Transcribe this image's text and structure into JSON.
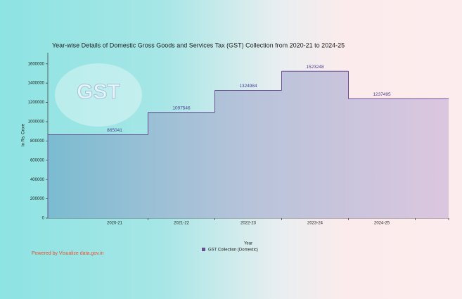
{
  "chart_data": {
    "type": "step-area",
    "title": "Year-wise Details of Domestic Gross Goods and Services Tax (GST) Collection from 2020-21 to 2024-25",
    "y_label": "In Rs. Crore",
    "x_label": "Year",
    "categories": [
      "2020-21",
      "2021-22",
      "2022-23",
      "2023-24",
      "2024-25"
    ],
    "series": [
      {
        "name": "GST Collection (Domestic)",
        "color": "#6a4c93",
        "values": [
          865041,
          1097546,
          1324984,
          1523248,
          1237495
        ]
      }
    ],
    "ylim": [
      0,
      1715000
    ],
    "yticks": [
      0,
      200000,
      400000,
      600000,
      800000,
      1000000,
      1200000,
      1400000,
      1600000
    ],
    "credit": "Powered by Visualize data.gov.in"
  }
}
